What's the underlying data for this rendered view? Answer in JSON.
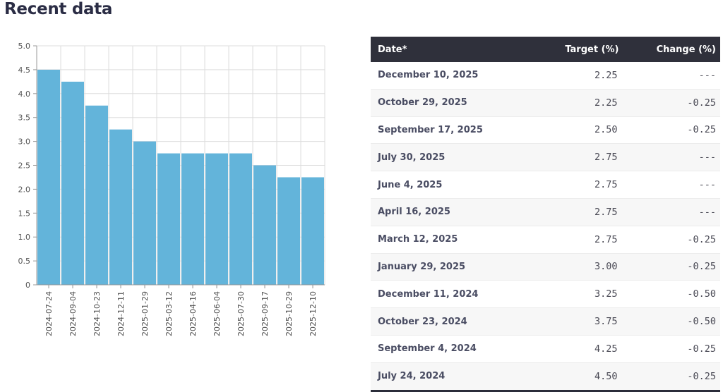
{
  "page": {
    "heading": "Recent data"
  },
  "chart_data": {
    "type": "bar",
    "categories": [
      "2024-07-24",
      "2024-09-04",
      "2024-10-23",
      "2024-12-11",
      "2025-01-29",
      "2025-03-12",
      "2025-04-16",
      "2025-06-04",
      "2025-07-30",
      "2025-09-17",
      "2025-10-29",
      "2025-12-10"
    ],
    "values": [
      4.5,
      4.25,
      3.75,
      3.25,
      3.0,
      2.75,
      2.75,
      2.75,
      2.75,
      2.5,
      2.25,
      2.25
    ],
    "title": "",
    "xlabel": "",
    "ylabel": "",
    "ylim": [
      0,
      5
    ],
    "y_ticks": [
      "0",
      "0.5",
      "1.0",
      "1.5",
      "2.0",
      "2.5",
      "3.0",
      "3.5",
      "4.0",
      "4.5",
      "5.0"
    ],
    "grid": true,
    "bar_color": "#63b4da"
  },
  "table": {
    "headers": {
      "date": "Date*",
      "target": "Target (%)",
      "change": "Change (%)"
    },
    "rows": [
      {
        "date": "December 10, 2025",
        "target": "2.25",
        "change": "---"
      },
      {
        "date": "October 29, 2025",
        "target": "2.25",
        "change": "-0.25"
      },
      {
        "date": "September 17, 2025",
        "target": "2.50",
        "change": "-0.25"
      },
      {
        "date": "July 30, 2025",
        "target": "2.75",
        "change": "---"
      },
      {
        "date": "June 4, 2025",
        "target": "2.75",
        "change": "---"
      },
      {
        "date": "April 16, 2025",
        "target": "2.75",
        "change": "---"
      },
      {
        "date": "March 12, 2025",
        "target": "2.75",
        "change": "-0.25"
      },
      {
        "date": "January 29, 2025",
        "target": "3.00",
        "change": "-0.25"
      },
      {
        "date": "December 11, 2024",
        "target": "3.25",
        "change": "-0.50"
      },
      {
        "date": "October 23, 2024",
        "target": "3.75",
        "change": "-0.50"
      },
      {
        "date": "September 4, 2024",
        "target": "4.25",
        "change": "-0.25"
      },
      {
        "date": "July 24, 2024",
        "target": "4.50",
        "change": "-0.25"
      }
    ]
  }
}
